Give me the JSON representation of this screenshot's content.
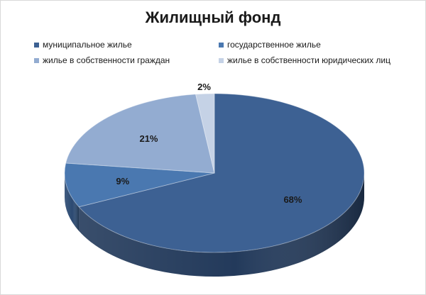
{
  "chart_data": {
    "type": "pie",
    "title": "Жилищный фонд",
    "legend_position": "top",
    "categories": [
      "муниципальное жилье",
      "государственное  жилье",
      "жилье в собственности  граждан",
      "жилье в собственности  юридических лиц"
    ],
    "values": [
      68,
      9,
      21,
      2
    ],
    "labels": [
      "68%",
      "9%",
      "21%",
      "2%"
    ],
    "colors": [
      "#3d6193",
      "#4a78b0",
      "#93acd1",
      "#c5d2e6"
    ],
    "side_colors": [
      "#233a5b",
      "#2c4a72",
      "#6d85aa",
      "#97a6bd"
    ]
  }
}
